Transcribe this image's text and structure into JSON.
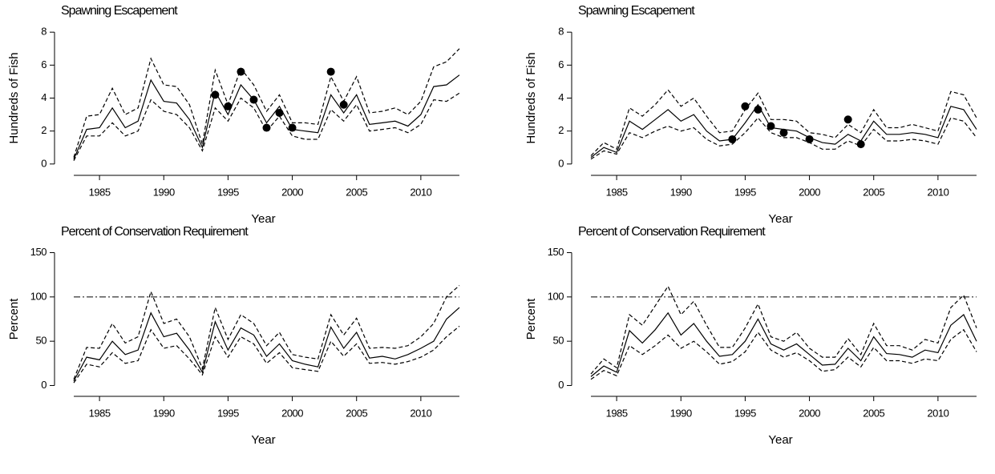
{
  "chart_data": [
    {
      "type": "line",
      "title": "Spawning Escapement",
      "x_label": "Year",
      "y_label": "Hundreds of Fish",
      "x": [
        1983,
        1984,
        1985,
        1986,
        1987,
        1988,
        1989,
        1990,
        1991,
        1992,
        1993,
        1994,
        1995,
        1996,
        1997,
        1998,
        1999,
        2000,
        2001,
        2002,
        2003,
        2004,
        2005,
        2006,
        2007,
        2008,
        2009,
        2010,
        2011,
        2012,
        2013
      ],
      "xlim": [
        1981.5,
        2014
      ],
      "xticks": [
        1985,
        1990,
        1995,
        2000,
        2005,
        2010
      ],
      "ylim": [
        -0.3,
        8.3
      ],
      "yticks": [
        0,
        2,
        4,
        6,
        8
      ],
      "series": [
        {
          "style": "solid",
          "color": "#000000",
          "values": [
            0.3,
            2.1,
            2.2,
            3.4,
            2.2,
            2.6,
            5.1,
            3.8,
            3.7,
            2.7,
            1.0,
            4.4,
            3.0,
            4.8,
            3.9,
            2.5,
            3.5,
            2.1,
            2.0,
            1.9,
            4.2,
            3.1,
            4.2,
            2.4,
            2.5,
            2.6,
            2.3,
            3.0,
            4.7,
            4.8,
            5.4
          ]
        },
        {
          "style": "dashed",
          "color": "#000000",
          "values": [
            0.4,
            2.9,
            3.0,
            4.6,
            3.0,
            3.4,
            6.4,
            4.8,
            4.7,
            3.6,
            1.2,
            5.7,
            3.6,
            5.8,
            4.8,
            3.2,
            4.2,
            2.5,
            2.5,
            2.4,
            5.3,
            3.8,
            5.3,
            3.1,
            3.2,
            3.4,
            3.0,
            3.8,
            5.9,
            6.2,
            7.0
          ]
        },
        {
          "style": "dashed",
          "color": "#000000",
          "values": [
            0.2,
            1.7,
            1.7,
            2.5,
            1.7,
            2.0,
            3.9,
            3.2,
            3.0,
            2.2,
            0.8,
            3.4,
            2.6,
            4.0,
            3.4,
            2.0,
            2.9,
            1.7,
            1.5,
            1.5,
            3.3,
            2.6,
            3.6,
            2.0,
            2.1,
            2.2,
            1.9,
            2.4,
            3.9,
            3.8,
            4.3
          ]
        },
        {
          "style": "points",
          "color": "#000000",
          "values": [
            null,
            null,
            null,
            null,
            null,
            null,
            null,
            null,
            null,
            null,
            null,
            4.2,
            3.5,
            5.6,
            3.9,
            2.2,
            3.1,
            2.2,
            null,
            null,
            5.6,
            3.6,
            null,
            null,
            null,
            null,
            null,
            null,
            null,
            null,
            null
          ]
        }
      ]
    },
    {
      "type": "line",
      "title": "Spawning Escapement",
      "x_label": "Year",
      "y_label": "Hundreds of Fish",
      "x": [
        1983,
        1984,
        1985,
        1986,
        1987,
        1988,
        1989,
        1990,
        1991,
        1992,
        1993,
        1994,
        1995,
        1996,
        1997,
        1998,
        1999,
        2000,
        2001,
        2002,
        2003,
        2004,
        2005,
        2006,
        2007,
        2008,
        2009,
        2010,
        2011,
        2012,
        2013
      ],
      "xlim": [
        1981.5,
        2014
      ],
      "xticks": [
        1985,
        1990,
        1995,
        2000,
        2005,
        2010
      ],
      "ylim": [
        -0.3,
        8.3
      ],
      "yticks": [
        0,
        2,
        4,
        6,
        8
      ],
      "series": [
        {
          "style": "solid",
          "color": "#000000",
          "values": [
            0.4,
            1.0,
            0.7,
            2.6,
            2.1,
            2.7,
            3.3,
            2.6,
            3.0,
            2.0,
            1.4,
            1.5,
            2.5,
            3.6,
            2.2,
            2.1,
            2.0,
            1.6,
            1.3,
            1.2,
            1.8,
            1.4,
            2.6,
            1.8,
            1.8,
            1.9,
            1.8,
            1.6,
            3.5,
            3.3,
            2.1
          ]
        },
        {
          "style": "dashed",
          "color": "#000000",
          "values": [
            0.5,
            1.3,
            0.9,
            3.4,
            2.9,
            3.6,
            4.5,
            3.5,
            4.0,
            2.9,
            1.9,
            2.0,
            3.3,
            4.3,
            2.7,
            2.7,
            2.6,
            1.9,
            1.8,
            1.6,
            2.4,
            1.9,
            3.3,
            2.2,
            2.2,
            2.4,
            2.2,
            2.0,
            4.4,
            4.2,
            2.8
          ]
        },
        {
          "style": "dashed",
          "color": "#000000",
          "values": [
            0.3,
            0.8,
            0.6,
            1.9,
            1.6,
            2.0,
            2.3,
            2.0,
            2.2,
            1.5,
            1.1,
            1.2,
            1.9,
            2.8,
            1.9,
            1.6,
            1.6,
            1.3,
            0.9,
            0.9,
            1.4,
            1.1,
            2.1,
            1.4,
            1.4,
            1.5,
            1.4,
            1.2,
            2.8,
            2.6,
            1.6
          ]
        },
        {
          "style": "points",
          "color": "#000000",
          "values": [
            null,
            null,
            null,
            null,
            null,
            null,
            null,
            null,
            null,
            null,
            null,
            1.5,
            3.5,
            3.3,
            2.3,
            1.9,
            null,
            1.5,
            null,
            null,
            2.7,
            1.2,
            null,
            null,
            null,
            null,
            null,
            null,
            null,
            null,
            null
          ]
        }
      ]
    },
    {
      "type": "line",
      "title": "Percent of Conservation Requirement",
      "x_label": "Year",
      "y_label": "Percent",
      "x": [
        1983,
        1984,
        1985,
        1986,
        1987,
        1988,
        1989,
        1990,
        1991,
        1992,
        1993,
        1994,
        1995,
        1996,
        1997,
        1998,
        1999,
        2000,
        2001,
        2002,
        2003,
        2004,
        2005,
        2006,
        2007,
        2008,
        2009,
        2010,
        2011,
        2012,
        2013
      ],
      "xlim": [
        1981.5,
        2014
      ],
      "xticks": [
        1985,
        1990,
        1995,
        2000,
        2005,
        2010
      ],
      "ylim": [
        -5,
        155
      ],
      "yticks": [
        0,
        50,
        100,
        150
      ],
      "hline": {
        "value": 100,
        "style": "dash-dot"
      },
      "series": [
        {
          "style": "solid",
          "color": "#000000",
          "values": [
            5,
            32,
            29,
            50,
            35,
            40,
            82,
            55,
            59,
            40,
            15,
            72,
            40,
            65,
            57,
            33,
            47,
            28,
            24,
            21,
            66,
            42,
            60,
            31,
            33,
            30,
            35,
            42,
            50,
            75,
            88
          ]
        },
        {
          "style": "dashed",
          "color": "#000000",
          "values": [
            7,
            43,
            42,
            70,
            48,
            55,
            106,
            70,
            75,
            55,
            19,
            88,
            52,
            80,
            70,
            45,
            60,
            35,
            32,
            30,
            80,
            57,
            76,
            42,
            43,
            42,
            45,
            55,
            70,
            100,
            113
          ]
        },
        {
          "style": "dashed",
          "color": "#000000",
          "values": [
            3,
            24,
            21,
            37,
            25,
            28,
            63,
            42,
            45,
            30,
            12,
            55,
            32,
            55,
            47,
            25,
            37,
            20,
            18,
            16,
            50,
            33,
            47,
            25,
            26,
            24,
            27,
            32,
            40,
            55,
            67
          ]
        }
      ]
    },
    {
      "type": "line",
      "title": "Percent of Conservation Requirement",
      "x_label": "Year",
      "y_label": "Percent",
      "x": [
        1983,
        1984,
        1985,
        1986,
        1987,
        1988,
        1989,
        1990,
        1991,
        1992,
        1993,
        1994,
        1995,
        1996,
        1997,
        1998,
        1999,
        2000,
        2001,
        2002,
        2003,
        2004,
        2005,
        2006,
        2007,
        2008,
        2009,
        2010,
        2011,
        2012,
        2013
      ],
      "xlim": [
        1981.5,
        2014
      ],
      "xticks": [
        1985,
        1990,
        1995,
        2000,
        2005,
        2010
      ],
      "ylim": [
        -5,
        155
      ],
      "yticks": [
        0,
        50,
        100,
        150
      ],
      "hline": {
        "value": 100,
        "style": "dash-dot"
      },
      "series": [
        {
          "style": "solid",
          "color": "#000000",
          "values": [
            10,
            22,
            15,
            62,
            48,
            63,
            82,
            57,
            70,
            50,
            33,
            35,
            50,
            75,
            47,
            40,
            47,
            35,
            23,
            24,
            42,
            28,
            55,
            36,
            35,
            32,
            40,
            37,
            68,
            80,
            50
          ]
        },
        {
          "style": "dashed",
          "color": "#000000",
          "values": [
            13,
            30,
            20,
            80,
            68,
            90,
            112,
            80,
            95,
            68,
            43,
            43,
            65,
            92,
            55,
            50,
            60,
            42,
            32,
            32,
            53,
            35,
            70,
            45,
            45,
            40,
            52,
            48,
            88,
            102,
            65
          ]
        },
        {
          "style": "dashed",
          "color": "#000000",
          "values": [
            7,
            17,
            11,
            45,
            35,
            45,
            57,
            42,
            50,
            38,
            24,
            27,
            38,
            60,
            40,
            32,
            37,
            28,
            16,
            18,
            32,
            21,
            43,
            28,
            28,
            25,
            30,
            28,
            52,
            63,
            38
          ]
        }
      ]
    }
  ]
}
